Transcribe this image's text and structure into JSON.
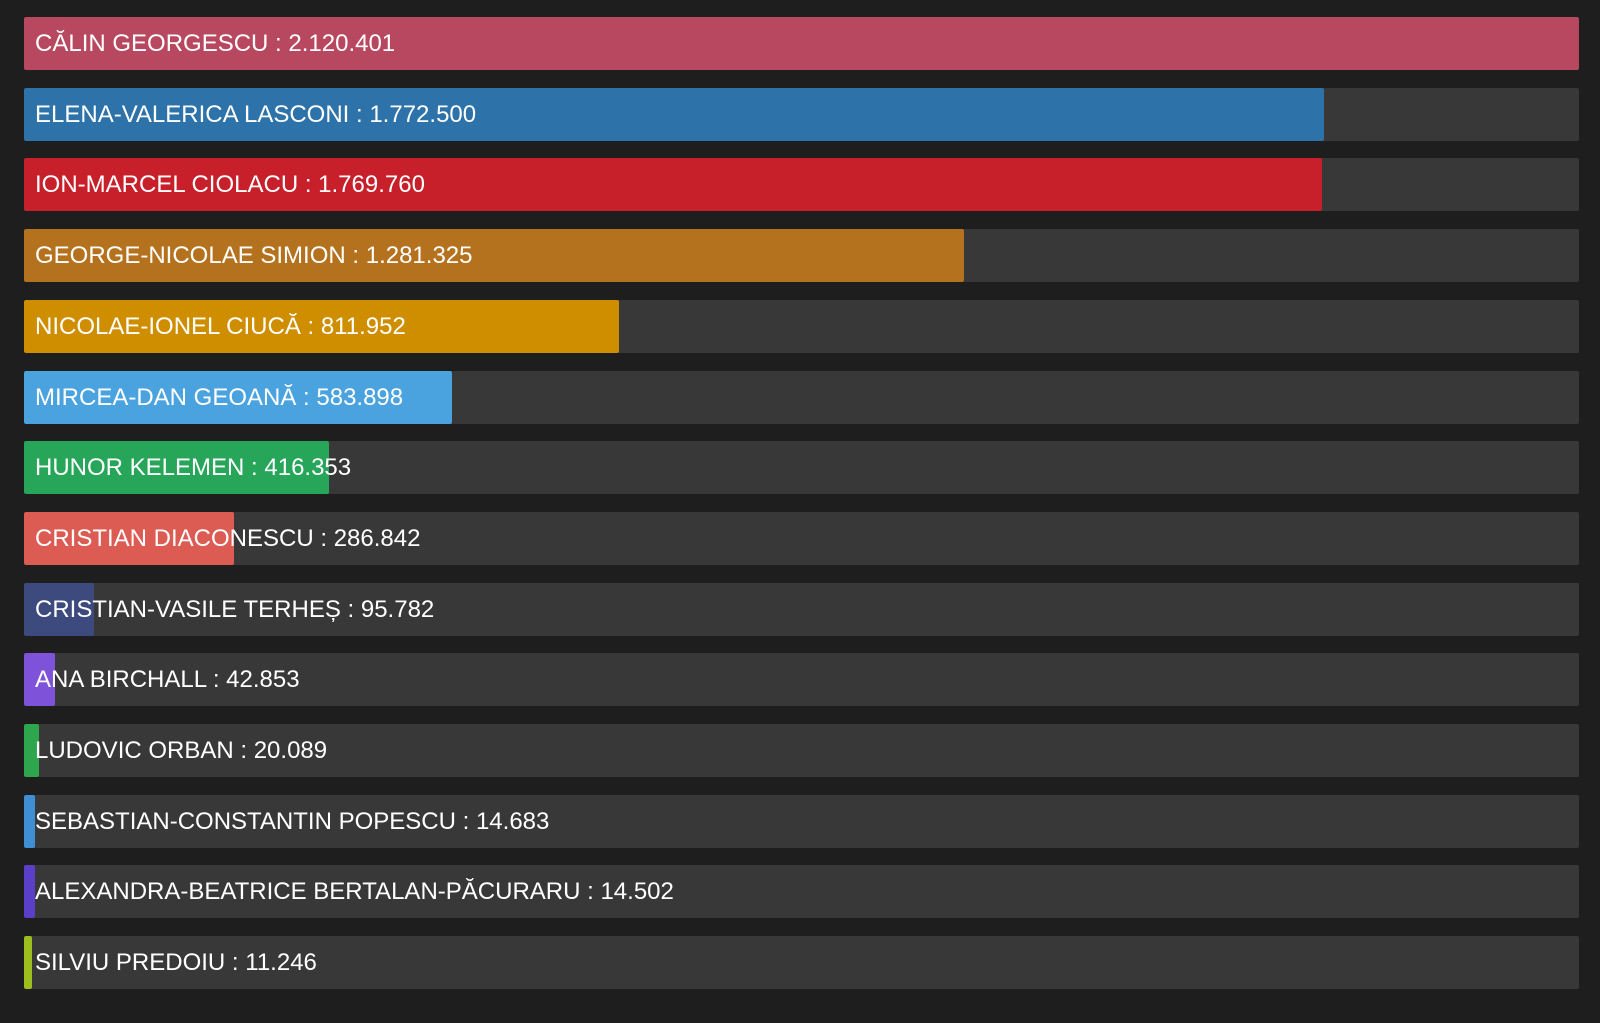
{
  "chart_data": {
    "type": "bar",
    "orientation": "horizontal",
    "grid": false,
    "legend": "none",
    "max_value": 2120401,
    "series": [
      {
        "name": "CĂLIN GEORGESCU",
        "value_label": "2.120.401",
        "value": 2120401,
        "color": "#b8485f"
      },
      {
        "name": "ELENA-VALERICA LASCONI",
        "value_label": "1.772.500",
        "value": 1772500,
        "color": "#2d72a8"
      },
      {
        "name": "ION-MARCEL CIOLACU",
        "value_label": "1.769.760",
        "value": 1769760,
        "color": "#c8202a"
      },
      {
        "name": "GEORGE-NICOLAE SIMION",
        "value_label": "1.281.325",
        "value": 1281325,
        "color": "#b5721e"
      },
      {
        "name": "NICOLAE-IONEL CIUCĂ",
        "value_label": "811.952",
        "value": 811952,
        "color": "#cf8e00"
      },
      {
        "name": "MIRCEA-DAN GEOANĂ",
        "value_label": "583.898",
        "value": 583898,
        "color": "#4aa3de"
      },
      {
        "name": "HUNOR KELEMEN",
        "value_label": "416.353",
        "value": 416353,
        "color": "#27a65a"
      },
      {
        "name": "CRISTIAN DIACONESCU",
        "value_label": "286.842",
        "value": 286842,
        "color": "#dc5c54"
      },
      {
        "name": "CRISTIAN-VASILE TERHEȘ",
        "value_label": "95.782",
        "value": 95782,
        "color": "#3d4a7d"
      },
      {
        "name": "ANA BIRCHALL",
        "value_label": "42.853",
        "value": 42853,
        "color": "#7e52d9"
      },
      {
        "name": "LUDOVIC ORBAN",
        "value_label": "20.089",
        "value": 20089,
        "color": "#2ea64e"
      },
      {
        "name": "SEBASTIAN-CONSTANTIN POPESCU",
        "value_label": "14.683",
        "value": 14683,
        "color": "#3f8fd4"
      },
      {
        "name": "ALEXANDRA-BEATRICE BERTALAN-PĂCURARU",
        "value_label": "14.502",
        "value": 14502,
        "color": "#5b3fc9"
      },
      {
        "name": "SILVIU PREDOIU",
        "value_label": "11.246",
        "value": 11246,
        "color": "#9cbf1e"
      }
    ]
  }
}
